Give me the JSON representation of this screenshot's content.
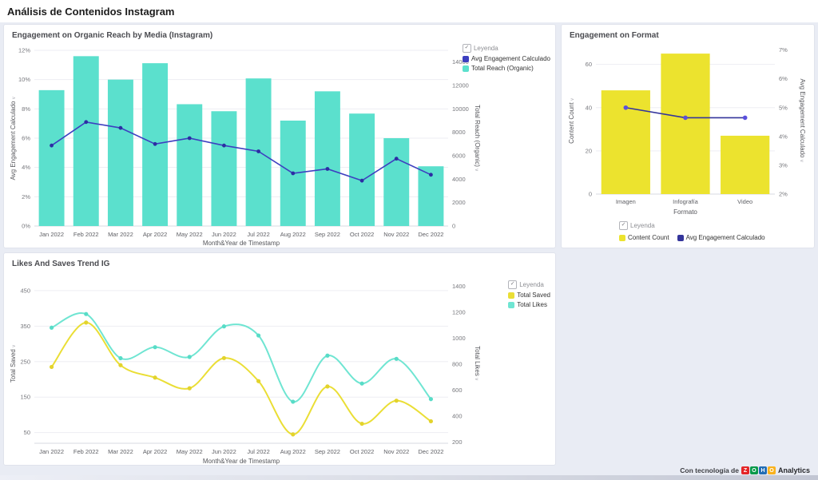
{
  "page_title": "Análisis de Contenidos Instagram",
  "legend_label": "Leyenda",
  "footer": {
    "powered_by": "Con tecnología de",
    "brand_suffix": "Analytics",
    "logo": [
      {
        "ch": "Z",
        "color": "#E42527"
      },
      {
        "ch": "O",
        "color": "#089949"
      },
      {
        "ch": "H",
        "color": "#226DB4"
      },
      {
        "ch": "O",
        "color": "#F9B21D"
      }
    ]
  },
  "chart_data": [
    {
      "id": "engagement-organic-reach",
      "type": "combo bar+line",
      "title": "Engagement on Organic Reach by Media (Instagram)",
      "xlabel": "Month&Year de Timestamp",
      "legend_position": "top-right",
      "grid": true,
      "categories": [
        "Jan 2022",
        "Feb 2022",
        "Mar 2022",
        "Apr 2022",
        "May 2022",
        "Jun 2022",
        "Jul 2022",
        "Aug 2022",
        "Sep 2022",
        "Oct 2022",
        "Nov 2022",
        "Dec 2022"
      ],
      "left_axis": {
        "title": "Avg Engagement Calculado",
        "min": 0,
        "max": 12,
        "ticks": [
          0,
          2,
          4,
          6,
          8,
          10,
          12
        ],
        "tick_labels": [
          "0%",
          "2%",
          "4%",
          "6%",
          "8%",
          "10%",
          "12%"
        ]
      },
      "right_axis": {
        "title": "Total Reach (Organic)",
        "min": 0,
        "max": 15000,
        "ticks": [
          0,
          2000,
          4000,
          6000,
          8000,
          10000,
          12000,
          14000
        ],
        "tick_labels": [
          "0",
          "2000",
          "4000",
          "6000",
          "8000",
          "10000",
          "12000",
          "14000"
        ]
      },
      "series": [
        {
          "name": "Avg Engagement Calculado",
          "type": "line",
          "axis": "left",
          "smooth": false,
          "color": "#3d3fc0",
          "marker": "#2c2da3",
          "width": 1.6,
          "values": [
            5.5,
            7.1,
            6.7,
            5.6,
            6.0,
            5.5,
            5.1,
            3.6,
            3.9,
            3.1,
            4.6,
            3.5
          ]
        },
        {
          "name": "Total Reach (Organic)",
          "type": "bar",
          "axis": "right",
          "color": "#5be0cd",
          "values": [
            11600,
            14500,
            12500,
            13900,
            10400,
            9800,
            12600,
            9000,
            11500,
            9600,
            7500,
            5100
          ]
        }
      ]
    },
    {
      "id": "engagement-on-format",
      "type": "combo bar+line",
      "title": "Engagement on Format",
      "xlabel": "Formato",
      "legend_position": "bottom",
      "grid": true,
      "categories": [
        "Imagen",
        "Infografía",
        "Video"
      ],
      "left_axis": {
        "title": "Content Count",
        "min": 0,
        "max": 68,
        "ticks": [
          0,
          20,
          40,
          60
        ],
        "tick_labels": [
          "0",
          "20",
          "40",
          "60"
        ]
      },
      "right_axis": {
        "title": "Avg Engagement Calculado",
        "min": 2,
        "max": 7.1,
        "ticks": [
          2,
          3,
          4,
          5,
          6,
          7
        ],
        "tick_labels": [
          "2%",
          "3%",
          "4%",
          "5%",
          "6%",
          "7%"
        ]
      },
      "series": [
        {
          "name": "Content Count",
          "type": "bar",
          "axis": "left",
          "color": "#ece32e",
          "values": [
            48,
            65,
            27
          ]
        },
        {
          "name": "Avg Engagement Calculado",
          "type": "line",
          "axis": "right",
          "smooth": false,
          "color": "#34359b",
          "marker": "#5a50dd",
          "width": 1.6,
          "marker_r": 2.8,
          "values": [
            5.0,
            4.65,
            4.65
          ]
        }
      ]
    },
    {
      "id": "likes-and-saves-trend",
      "type": "line",
      "title": "Likes And Saves Trend IG",
      "xlabel": "Month&Year de Timestamp",
      "legend_position": "top-right",
      "grid": true,
      "categories": [
        "Jan 2022",
        "Feb 2022",
        "Mar 2022",
        "Apr 2022",
        "May 2022",
        "Jun 2022",
        "Jul 2022",
        "Aug 2022",
        "Sep 2022",
        "Oct 2022",
        "Nov 2022",
        "Dec 2022"
      ],
      "left_axis": {
        "title": "Total Saved",
        "min": 20,
        "max": 470,
        "ticks": [
          50,
          150,
          250,
          350,
          450
        ],
        "tick_labels": [
          "50",
          "150",
          "250",
          "350",
          "450"
        ]
      },
      "right_axis": {
        "title": "Total Likes",
        "min": 190,
        "max": 1420,
        "ticks": [
          200,
          400,
          600,
          800,
          1000,
          1200,
          1400
        ],
        "tick_labels": [
          "200",
          "400",
          "600",
          "800",
          "1000",
          "1200",
          "1400"
        ]
      },
      "series": [
        {
          "name": "Total Saved",
          "type": "line",
          "axis": "left",
          "smooth": true,
          "color": "#eade35",
          "marker": "#e3d32c",
          "width": 2,
          "marker_r": 2.6,
          "values": [
            235,
            360,
            240,
            205,
            175,
            260,
            195,
            45,
            180,
            75,
            140,
            82
          ]
        },
        {
          "name": "Total Likes",
          "type": "line",
          "axis": "right",
          "smooth": true,
          "color": "#6fe5d2",
          "marker": "#58dcc7",
          "width": 2,
          "marker_r": 2.6,
          "values": [
            1080,
            1185,
            845,
            930,
            855,
            1090,
            1020,
            510,
            865,
            650,
            840,
            530
          ]
        }
      ]
    }
  ]
}
